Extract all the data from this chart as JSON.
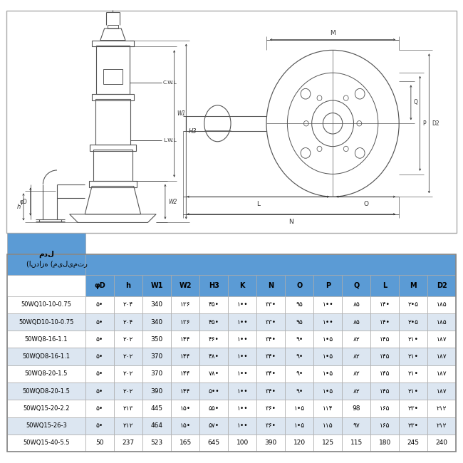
{
  "table_header_bg": "#5b9bd5",
  "table_subheader_bg": "#5b9bd5",
  "table_row_bg_odd": "#ffffff",
  "table_row_bg_even": "#dce6f1",
  "border_color": "#aaaaaa",
  "lc": "#555555",
  "dc": "#333333",
  "title_row_label": "مدل",
  "dimensions_label": "(اندازه (میلیمتر",
  "col_headers": [
    "φD",
    "h",
    "W1",
    "W2",
    "H3",
    "K",
    "N",
    "O",
    "P",
    "Q",
    "L",
    "M",
    "D2"
  ],
  "rows": [
    {
      "model": "50WQ10-10-0.75",
      "vals": [
        "۵•",
        "۲۰۴",
        "340",
        "۱۳۶",
        "۴۵•",
        "۱••",
        "۳۳•",
        "۹۵",
        "۱••",
        "۸۵",
        "۱۴•",
        "۲•۵",
        "۱۸۵"
      ]
    },
    {
      "model": "50WQD10-10-0.75",
      "vals": [
        "۵•",
        "۲۰۴",
        "340",
        "۱۳۶",
        "۴۵•",
        "۱••",
        "۳۳•",
        "۹۵",
        "۱••",
        "۸۵",
        "۱۴•",
        "۲•۵",
        "۱۸۵"
      ]
    },
    {
      "model": "50WQ8-16-1.1",
      "vals": [
        "۵•",
        "۲۰۲",
        "350",
        "۱۴۴",
        "۴۶•",
        "۱••",
        "۳۴•",
        "۹•",
        "۱•۵",
        "۸۲",
        "۱۴۵",
        "۲۱•",
        "۱۸۷"
      ]
    },
    {
      "model": "50WQD8-16-1.1",
      "vals": [
        "۵•",
        "۲۰۲",
        "370",
        "۱۴۴",
        "۴۸•",
        "۱••",
        "۳۴•",
        "۹•",
        "۱•۵",
        "۸۲",
        "۱۴۵",
        "۲۱•",
        "۱۸۷"
      ]
    },
    {
      "model": "50WQ8-20-1.5",
      "vals": [
        "۵•",
        "۲۰۲",
        "370",
        "۱۴۴",
        "۷۸•",
        "۱••",
        "۳۴•",
        "۹•",
        "۱•۵",
        "۸۲",
        "۱۴۵",
        "۲۱•",
        "۱۸۷"
      ]
    },
    {
      "model": "50WQD8-20-1.5",
      "vals": [
        "۵•",
        "۲۰۲",
        "390",
        "۱۴۴",
        "۵••",
        "۱••",
        "۳۴•",
        "۹•",
        "۱•۵",
        "۸۲",
        "۱۴۵",
        "۲۱•",
        "۱۸۷"
      ]
    },
    {
      "model": "50WQ15-20-2.2",
      "vals": [
        "۵•",
        "۲۱۳",
        "445",
        "۱۵•",
        "۵۵•",
        "۱••",
        "۳۶•",
        "۱•۵",
        "۱۱۴",
        "98",
        "۱۶۵",
        "۲۳•",
        "۲۱۲"
      ]
    },
    {
      "model": "50WQ15-26-3",
      "vals": [
        "۵•",
        "۲۱۲",
        "464",
        "۱۵•",
        "۵۷•",
        "۱••",
        "۳۶•",
        "۱•۵",
        "۱۱۵",
        "۹۷",
        "۱۶۵",
        "۲۳•",
        "۲۱۲"
      ]
    },
    {
      "model": "50WQ15-40-5.5",
      "vals": [
        "50",
        "237",
        "523",
        "165",
        "645",
        "100",
        "390",
        "120",
        "125",
        "115",
        "180",
        "245",
        "240"
      ]
    }
  ]
}
